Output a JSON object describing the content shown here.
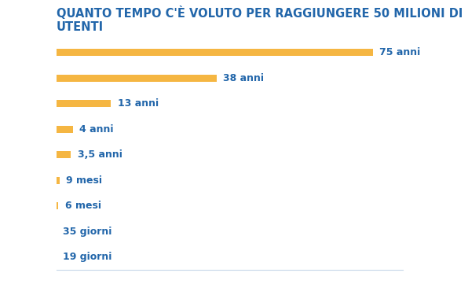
{
  "chart_data": {
    "type": "bar",
    "orientation": "horizontal",
    "title": "QUANTO TEMPO C'È VOLUTO PER RAGGIUNGERE 50 MILIONI DI UTENTI",
    "categories": [
      null,
      null,
      null,
      null,
      null,
      null,
      null,
      null,
      null
    ],
    "values": [
      75,
      38,
      13,
      4,
      3.5,
      0.75,
      0.5,
      0.0959,
      0.0521
    ],
    "value_labels": [
      "75 anni",
      "38 anni",
      "13 anni",
      "4 anni",
      "3,5 anni",
      "9 mesi",
      "6 mesi",
      "35 giorni",
      "19 giorni"
    ],
    "data_labels": true,
    "color": "#f5b642",
    "xlim": [
      0,
      82
    ],
    "tick_labels": false,
    "grid": false
  }
}
